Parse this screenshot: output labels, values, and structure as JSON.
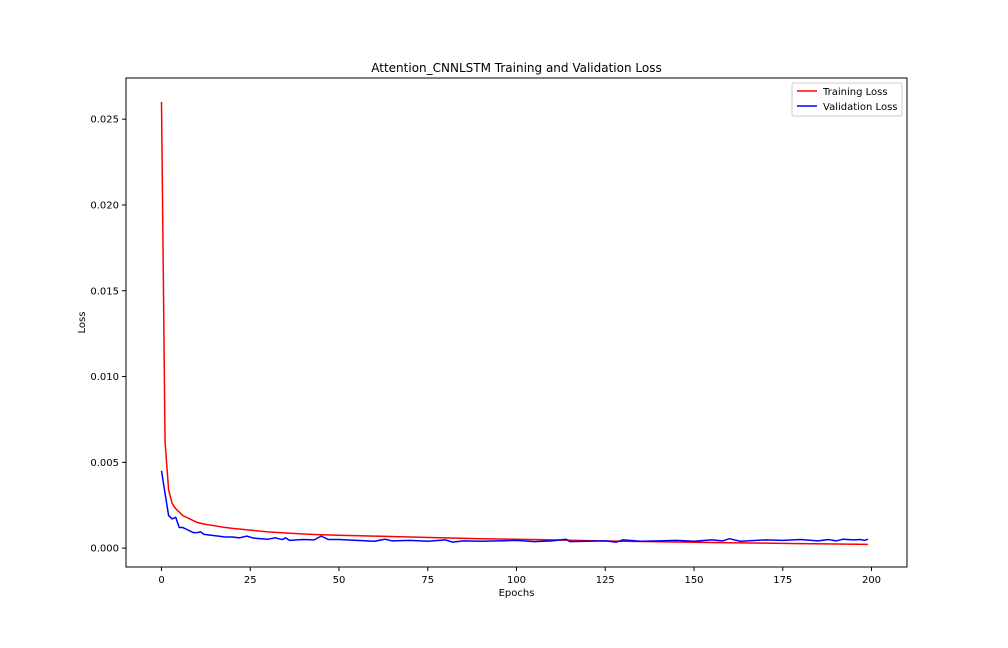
{
  "chart_data": {
    "type": "line",
    "title": "Attention_CNNLSTM Training and Validation Loss",
    "xlabel": "Epochs",
    "ylabel": "Loss",
    "xlim": [
      -10,
      210
    ],
    "ylim": [
      -0.0011,
      0.0274
    ],
    "xticks": [
      0,
      25,
      50,
      75,
      100,
      125,
      150,
      175,
      200
    ],
    "yticks": [
      0.0,
      0.005,
      0.01,
      0.015,
      0.02,
      0.025
    ],
    "ytick_labels": [
      "0.000",
      "0.005",
      "0.010",
      "0.015",
      "0.020",
      "0.025"
    ],
    "xtick_labels": [
      "0",
      "25",
      "50",
      "75",
      "100",
      "125",
      "150",
      "175",
      "200"
    ],
    "legend_position": "top-right",
    "series": [
      {
        "name": "Training Loss",
        "color": "#ff0000",
        "points": [
          [
            0,
            0.026
          ],
          [
            1,
            0.0062
          ],
          [
            2,
            0.0034
          ],
          [
            3,
            0.0026
          ],
          [
            4,
            0.0023
          ],
          [
            5,
            0.0021
          ],
          [
            6,
            0.0019
          ],
          [
            7,
            0.0018
          ],
          [
            8,
            0.0017
          ],
          [
            9,
            0.0016
          ],
          [
            10,
            0.0015
          ],
          [
            12,
            0.0014
          ],
          [
            15,
            0.0013
          ],
          [
            18,
            0.0012
          ],
          [
            20,
            0.00115
          ],
          [
            25,
            0.00105
          ],
          [
            30,
            0.00095
          ],
          [
            35,
            0.00088
          ],
          [
            40,
            0.00082
          ],
          [
            45,
            0.00078
          ],
          [
            50,
            0.00075
          ],
          [
            60,
            0.0007
          ],
          [
            70,
            0.00065
          ],
          [
            80,
            0.0006
          ],
          [
            90,
            0.00055
          ],
          [
            100,
            0.00052
          ],
          [
            110,
            0.00048
          ],
          [
            120,
            0.00044
          ],
          [
            130,
            0.0004
          ],
          [
            140,
            0.00037
          ],
          [
            150,
            0.00034
          ],
          [
            160,
            0.00031
          ],
          [
            170,
            0.00029
          ],
          [
            180,
            0.00026
          ],
          [
            190,
            0.00024
          ],
          [
            199,
            0.00022
          ]
        ]
      },
      {
        "name": "Validation Loss",
        "color": "#0000ff",
        "points": [
          [
            0,
            0.0045
          ],
          [
            1,
            0.0032
          ],
          [
            2,
            0.0019
          ],
          [
            3,
            0.0017
          ],
          [
            4,
            0.0018
          ],
          [
            5,
            0.0012
          ],
          [
            6,
            0.0012
          ],
          [
            7,
            0.0011
          ],
          [
            8,
            0.001
          ],
          [
            9,
            0.0009
          ],
          [
            10,
            0.0009
          ],
          [
            11,
            0.00095
          ],
          [
            12,
            0.0008
          ],
          [
            14,
            0.00075
          ],
          [
            16,
            0.0007
          ],
          [
            18,
            0.00065
          ],
          [
            20,
            0.00065
          ],
          [
            22,
            0.0006
          ],
          [
            24,
            0.0007
          ],
          [
            26,
            0.00058
          ],
          [
            28,
            0.00055
          ],
          [
            30,
            0.00052
          ],
          [
            32,
            0.0006
          ],
          [
            34,
            0.0005
          ],
          [
            35,
            0.0006
          ],
          [
            36,
            0.00045
          ],
          [
            40,
            0.0005
          ],
          [
            43,
            0.00048
          ],
          [
            45,
            0.0007
          ],
          [
            47,
            0.0005
          ],
          [
            50,
            0.0005
          ],
          [
            55,
            0.00045
          ],
          [
            60,
            0.0004
          ],
          [
            63,
            0.00052
          ],
          [
            65,
            0.00042
          ],
          [
            70,
            0.00045
          ],
          [
            75,
            0.0004
          ],
          [
            80,
            0.00048
          ],
          [
            82,
            0.00035
          ],
          [
            85,
            0.00042
          ],
          [
            90,
            0.0004
          ],
          [
            95,
            0.00042
          ],
          [
            100,
            0.00045
          ],
          [
            105,
            0.00038
          ],
          [
            110,
            0.00042
          ],
          [
            114,
            0.00052
          ],
          [
            115,
            0.00038
          ],
          [
            120,
            0.0004
          ],
          [
            125,
            0.00042
          ],
          [
            128,
            0.00035
          ],
          [
            130,
            0.00048
          ],
          [
            135,
            0.0004
          ],
          [
            140,
            0.00042
          ],
          [
            145,
            0.00045
          ],
          [
            150,
            0.0004
          ],
          [
            155,
            0.00048
          ],
          [
            158,
            0.00042
          ],
          [
            160,
            0.00055
          ],
          [
            163,
            0.0004
          ],
          [
            165,
            0.00042
          ],
          [
            170,
            0.00048
          ],
          [
            175,
            0.00045
          ],
          [
            180,
            0.0005
          ],
          [
            185,
            0.00042
          ],
          [
            188,
            0.0005
          ],
          [
            190,
            0.00042
          ],
          [
            192,
            0.00052
          ],
          [
            195,
            0.00048
          ],
          [
            197,
            0.0005
          ],
          [
            198,
            0.00045
          ],
          [
            199,
            0.00052
          ]
        ]
      }
    ]
  }
}
